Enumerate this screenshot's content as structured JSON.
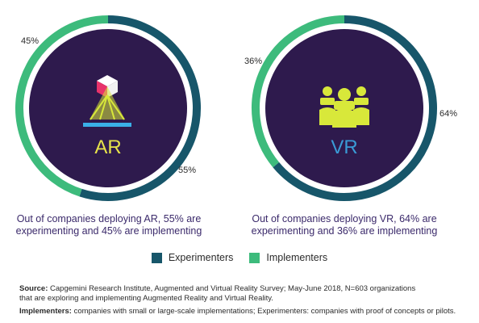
{
  "chart_data": [
    {
      "type": "pie",
      "center_label": "AR",
      "categories": [
        "Experimenters",
        "Implementers"
      ],
      "values": [
        55,
        45
      ],
      "value_labels": [
        "55%",
        "45%"
      ],
      "colors": [
        "#17566a",
        "#3dbb7c"
      ],
      "caption_lines": [
        "Out of companies deploying AR, 55% are",
        "experimenting and 45% are implementing"
      ]
    },
    {
      "type": "pie",
      "center_label": "VR",
      "categories": [
        "Experimenters",
        "Implementers"
      ],
      "values": [
        64,
        36
      ],
      "value_labels": [
        "64%",
        "36%"
      ],
      "colors": [
        "#17566a",
        "#3dbb7c"
      ],
      "caption_lines": [
        "Out of companies deploying VR, 64% are",
        "experimenting and 36% are implementing"
      ]
    }
  ],
  "legend": [
    {
      "label": "Experimenters",
      "color": "#17566a"
    },
    {
      "label": "Implementers",
      "color": "#3dbb7c"
    }
  ],
  "center_fill": "#2e1a4d",
  "ar_label_color": "#e6e34a",
  "vr_label_color": "#3a9bd6",
  "icons": [
    "ar-hologram-icon",
    "vr-headset-group-icon"
  ],
  "notes": {
    "source_label": "Source:",
    "source_text": " Capgemini Research Institute, Augmented and Virtual Reality Survey; May-June 2018, N=603 organizations",
    "source_text2": "that are exploring and implementing Augmented Reality and Virtual Reality.",
    "implementers_label": "Implementers:",
    "implementers_text": " companies with small or large-scale implementations; Experimenters: companies with proof of concepts or pilots."
  }
}
